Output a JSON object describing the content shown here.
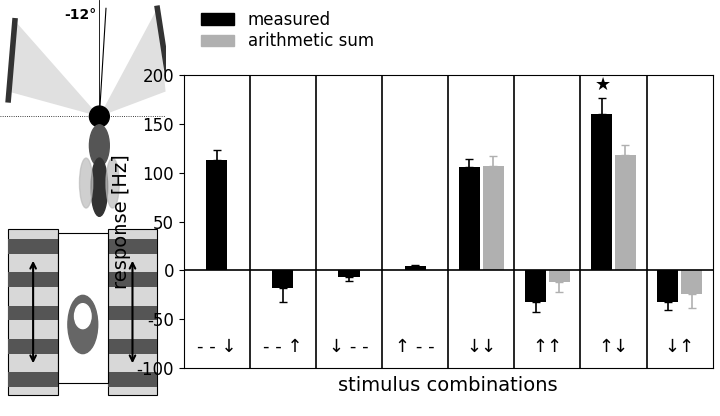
{
  "chart_data": {
    "type": "bar",
    "categories": [
      "- - ↓",
      "- - ↑",
      "↓ - -",
      "↑ - -",
      "↓↓",
      "↑↑",
      "↑↓",
      "↓↑"
    ],
    "series": [
      {
        "name": "measured",
        "color": "#000000",
        "values": [
          113,
          -18,
          -7,
          4,
          106,
          -32,
          160,
          -32
        ],
        "errors": [
          10,
          14,
          4,
          2,
          8,
          11,
          16,
          8
        ]
      },
      {
        "name": "arithmetic sum",
        "color": "#b0b0b0",
        "values": [
          null,
          null,
          null,
          null,
          107,
          -12,
          118,
          -24
        ],
        "errors": [
          null,
          null,
          null,
          null,
          10,
          10,
          10,
          14
        ]
      }
    ],
    "x_label": "stimulus combinations",
    "y_label": "response [Hz]",
    "ylim": [
      -100,
      200
    ],
    "yticks": [
      -100,
      -50,
      0,
      50,
      100,
      150,
      200
    ],
    "legend": "upper left",
    "annotations": [
      {
        "category": "↑↓",
        "text": "★"
      }
    ],
    "diagram_annotation": "-12°"
  }
}
